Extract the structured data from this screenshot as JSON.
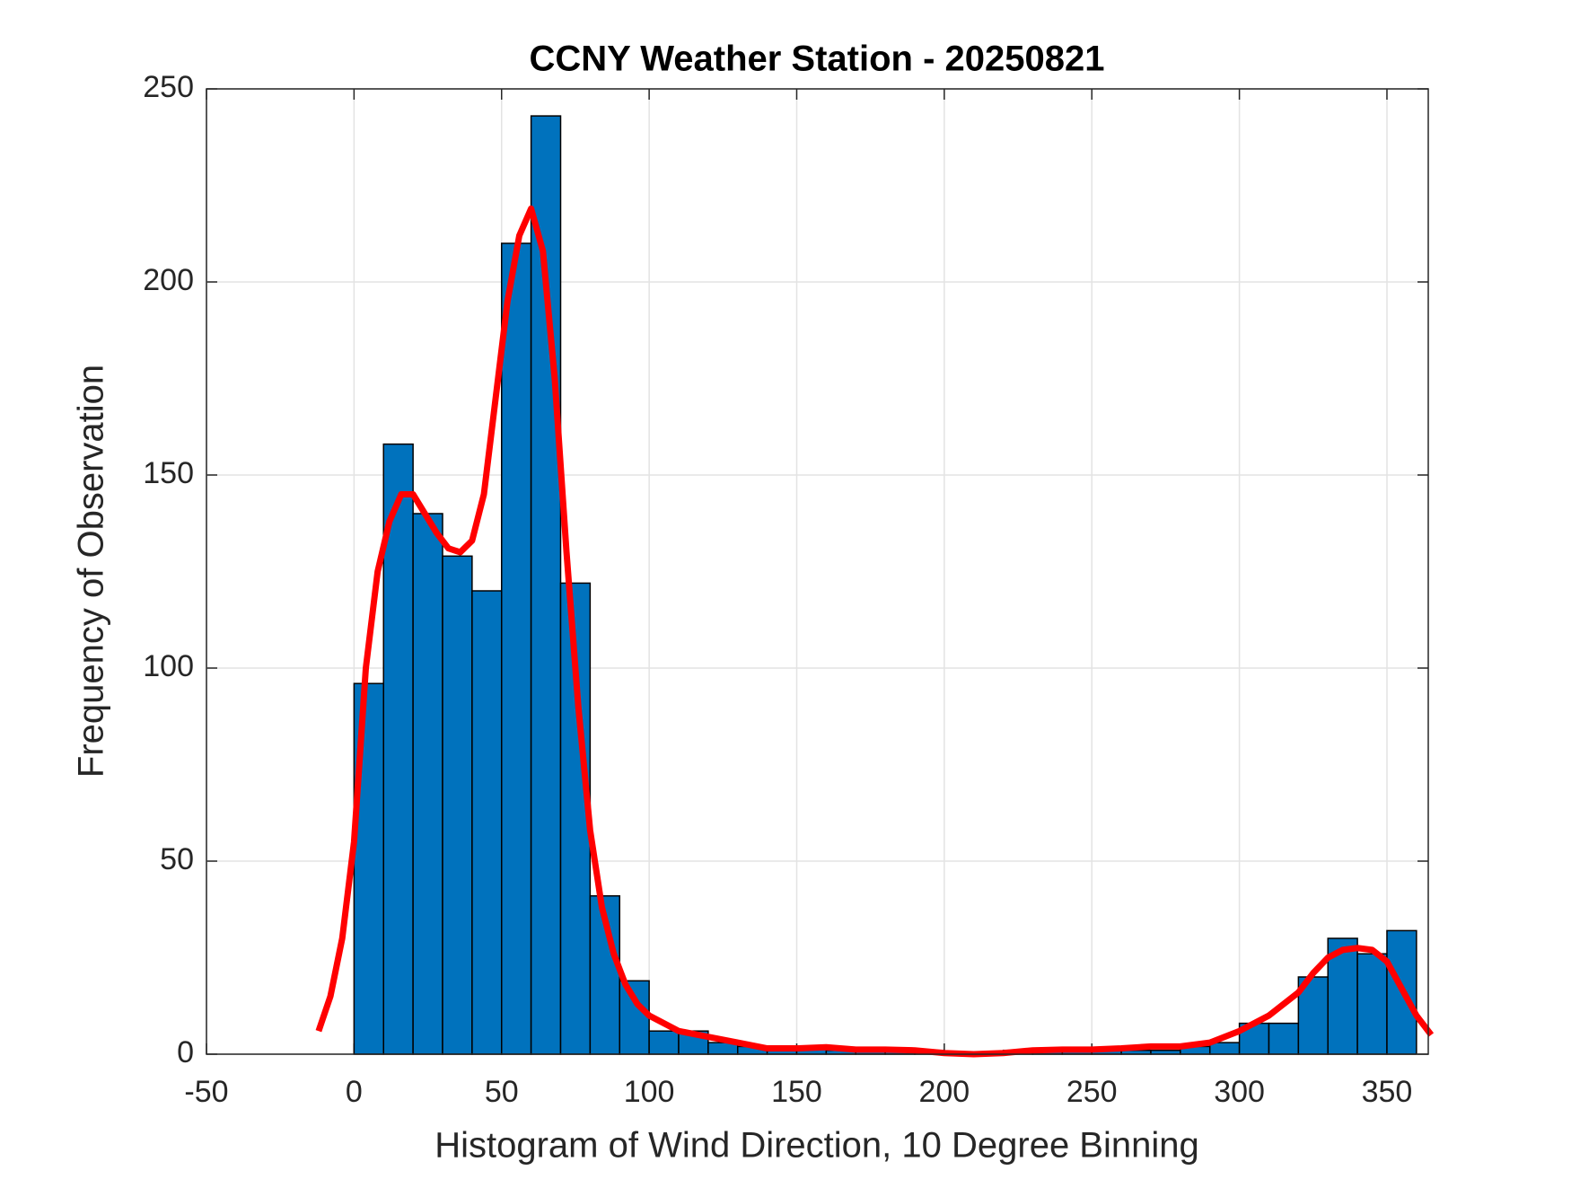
{
  "chart_data": {
    "type": "histogram",
    "title": "CCNY Weather Station - 20250821",
    "xlabel": "Histogram of Wind Direction, 10 Degree Binning",
    "ylabel": "Frequency of Observation",
    "bins": [
      0,
      10,
      20,
      30,
      40,
      50,
      60,
      70,
      80,
      90,
      100,
      110,
      120,
      130,
      140,
      150,
      160,
      170,
      180,
      190,
      200,
      210,
      220,
      230,
      240,
      250,
      260,
      270,
      280,
      290,
      300,
      310,
      320,
      330,
      340,
      350,
      360
    ],
    "counts": [
      96,
      158,
      140,
      129,
      120,
      210,
      243,
      122,
      41,
      19,
      6,
      6,
      3,
      2,
      1,
      2,
      1,
      1,
      1,
      1,
      0,
      0,
      1,
      1,
      1,
      1,
      1,
      1,
      2,
      3,
      8,
      8,
      20,
      30,
      26,
      32
    ],
    "color": "#0072bd",
    "line": {
      "color": "#ff0000",
      "x": [
        -12,
        -8,
        -4,
        0,
        4,
        8,
        12,
        16,
        20,
        24,
        28,
        32,
        36,
        40,
        44,
        48,
        52,
        56,
        60,
        64,
        68,
        72,
        76,
        80,
        84,
        88,
        92,
        96,
        100,
        110,
        120,
        130,
        140,
        150,
        160,
        170,
        180,
        190,
        200,
        210,
        220,
        230,
        240,
        250,
        260,
        270,
        280,
        290,
        300,
        310,
        320,
        325,
        330,
        335,
        340,
        345,
        350,
        355,
        360,
        365
      ],
      "values": [
        6,
        15,
        30,
        55,
        100,
        125,
        138,
        145,
        145,
        140,
        135,
        131,
        130,
        133,
        145,
        170,
        195,
        212,
        219,
        208,
        175,
        130,
        90,
        58,
        38,
        26,
        18,
        13,
        10,
        6,
        4.5,
        3,
        1.5,
        1.5,
        1.8,
        1.2,
        1.2,
        1,
        0.3,
        0,
        0.3,
        1,
        1.2,
        1.2,
        1.5,
        2,
        2,
        3,
        6,
        10,
        16,
        21,
        25,
        27,
        27.5,
        27,
        24,
        17,
        10,
        5
      ]
    },
    "xlim": [
      -50,
      364
    ],
    "ylim": [
      0,
      250
    ],
    "xticks": [
      -50,
      0,
      50,
      100,
      150,
      200,
      250,
      300,
      350
    ],
    "yticks": [
      0,
      50,
      100,
      150,
      200,
      250
    ],
    "grid": true
  }
}
